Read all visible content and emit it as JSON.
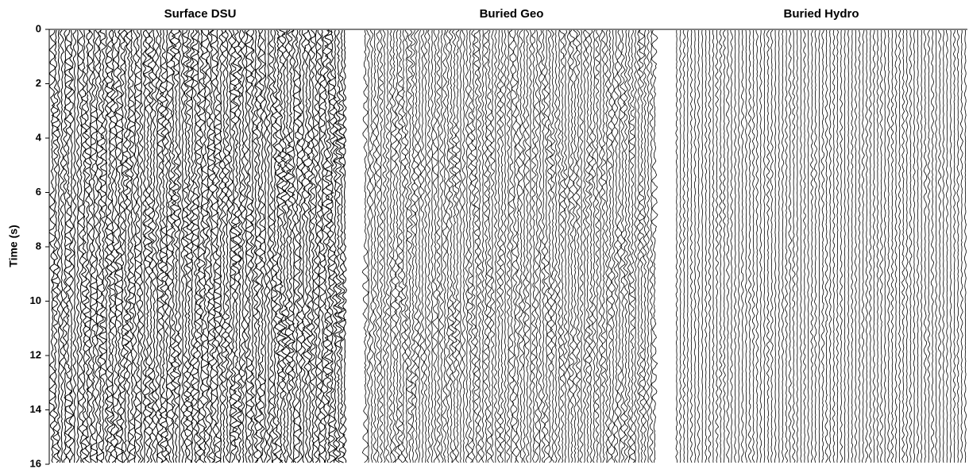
{
  "chart_data": [
    {
      "type": "wiggle",
      "title": "Surface DSU",
      "ylabel": "Time (s)",
      "ylim": [
        0,
        16
      ],
      "yticks": [
        0,
        2,
        4,
        6,
        8,
        10,
        12,
        14,
        16
      ],
      "y_inverted": true
    },
    {
      "type": "wiggle",
      "title": "Buried Geo",
      "ylim": [
        0,
        16
      ],
      "y_inverted": true
    },
    {
      "type": "wiggle",
      "title": "Buried Hydro",
      "ylim": [
        0,
        16
      ],
      "y_inverted": true
    }
  ]
}
